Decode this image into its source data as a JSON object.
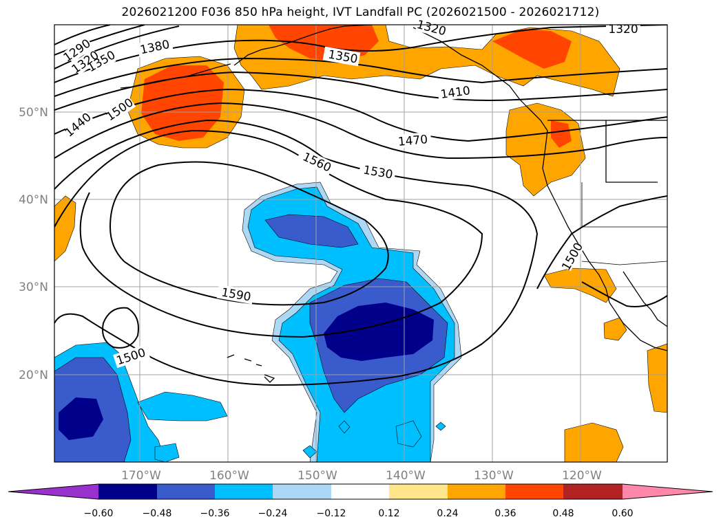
{
  "title": "2026021200 F036 850 hPa height, IVT Landfall PC (2026021500 - 2026021712)",
  "map": {
    "lat_labels": [
      "50°N",
      "40°N",
      "30°N",
      "20°N"
    ],
    "lon_labels": [
      "170°W",
      "160°W",
      "150°W",
      "140°W",
      "130°W",
      "120°W"
    ]
  },
  "contour_labels": [
    "1290",
    "1320",
    "1350",
    "1380",
    "1320",
    "1350",
    "1320",
    "1410",
    "1440",
    "1500",
    "1470",
    "1560",
    "1530",
    "1590",
    "1500",
    "1500"
  ],
  "colorbar": {
    "ticks": [
      "−0.60",
      "−0.48",
      "−0.36",
      "−0.24",
      "−0.12",
      "0.12",
      "0.24",
      "0.36",
      "0.48",
      "0.60"
    ],
    "colors": [
      "#9932cc",
      "#00008b",
      "#3a5bcc",
      "#00bfff",
      "#add8f5",
      "#ffffff",
      "#ffe68a",
      "#ffa500",
      "#ff4500",
      "#b22222",
      "#ff88aa"
    ]
  },
  "colors": {
    "height_contour": "#000000",
    "grid": "#a0a0a0",
    "tick_text": "#808080"
  }
}
